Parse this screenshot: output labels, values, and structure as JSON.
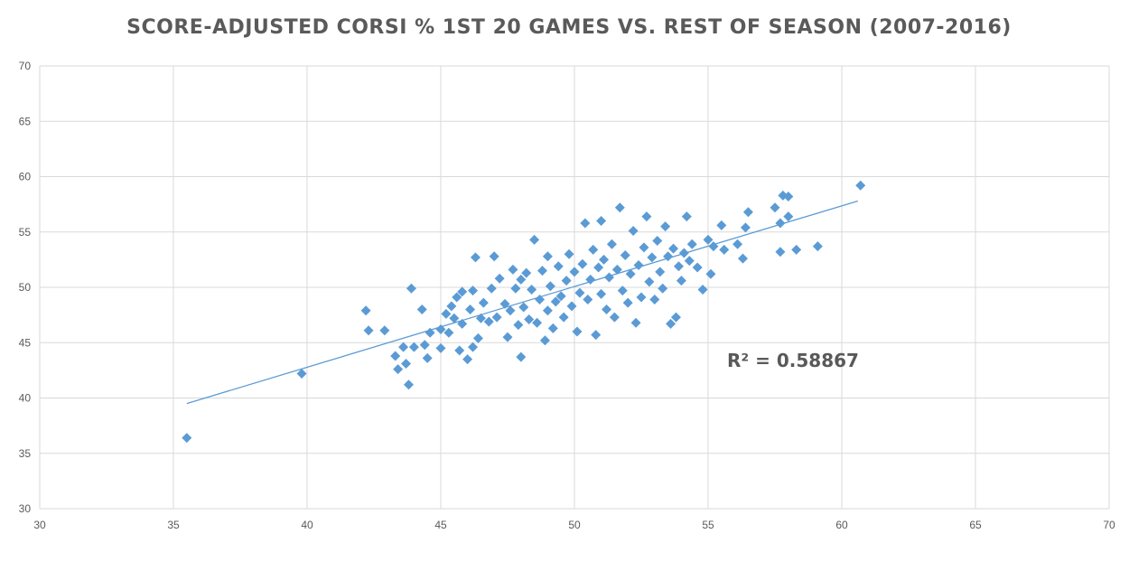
{
  "chart_data": {
    "type": "scatter",
    "title": "SCORE-ADJUSTED CORSI % 1ST 20 GAMES VS. REST OF SEASON (2007-2016)",
    "xlabel": "",
    "ylabel": "",
    "xlim": [
      30,
      70
    ],
    "ylim": [
      30,
      70
    ],
    "xticks": [
      30,
      35,
      40,
      45,
      50,
      55,
      60,
      65,
      70
    ],
    "yticks": [
      30,
      35,
      40,
      45,
      50,
      55,
      60,
      65,
      70
    ],
    "grid": true,
    "marker": "diamond",
    "colors": {
      "points": "#5b9bd5",
      "trendline": "#5b9bd5",
      "grid": "#d9d9d9"
    },
    "trendline": {
      "type": "linear",
      "x_start": 35.5,
      "y_start": 39.5,
      "x_end": 60.6,
      "y_end": 57.8
    },
    "annotation": "R² = 0.58867",
    "points": [
      [
        35.5,
        36.4
      ],
      [
        39.8,
        42.2
      ],
      [
        42.2,
        47.9
      ],
      [
        42.3,
        46.1
      ],
      [
        42.9,
        46.1
      ],
      [
        43.3,
        43.8
      ],
      [
        43.4,
        42.6
      ],
      [
        43.6,
        44.6
      ],
      [
        43.7,
        43.1
      ],
      [
        43.8,
        41.2
      ],
      [
        43.9,
        49.9
      ],
      [
        44.0,
        44.6
      ],
      [
        44.3,
        48.0
      ],
      [
        44.4,
        44.8
      ],
      [
        44.5,
        43.6
      ],
      [
        44.6,
        45.9
      ],
      [
        45.0,
        44.5
      ],
      [
        45.0,
        46.2
      ],
      [
        45.2,
        47.6
      ],
      [
        45.3,
        45.9
      ],
      [
        45.4,
        48.3
      ],
      [
        45.5,
        47.2
      ],
      [
        45.6,
        49.1
      ],
      [
        45.7,
        44.3
      ],
      [
        45.8,
        46.7
      ],
      [
        45.8,
        49.6
      ],
      [
        46.0,
        43.5
      ],
      [
        46.1,
        48.0
      ],
      [
        46.2,
        44.6
      ],
      [
        46.2,
        49.7
      ],
      [
        46.3,
        52.7
      ],
      [
        46.4,
        45.4
      ],
      [
        46.5,
        47.2
      ],
      [
        46.6,
        48.6
      ],
      [
        46.8,
        46.9
      ],
      [
        46.9,
        49.9
      ],
      [
        47.0,
        52.8
      ],
      [
        47.1,
        47.3
      ],
      [
        47.2,
        50.8
      ],
      [
        47.4,
        48.5
      ],
      [
        47.5,
        45.5
      ],
      [
        47.6,
        47.9
      ],
      [
        47.7,
        51.6
      ],
      [
        47.8,
        49.9
      ],
      [
        47.9,
        46.6
      ],
      [
        48.0,
        43.7
      ],
      [
        48.0,
        50.7
      ],
      [
        48.1,
        48.2
      ],
      [
        48.2,
        51.3
      ],
      [
        48.3,
        47.1
      ],
      [
        48.4,
        49.8
      ],
      [
        48.5,
        54.3
      ],
      [
        48.6,
        46.8
      ],
      [
        48.7,
        48.9
      ],
      [
        48.8,
        51.5
      ],
      [
        48.9,
        45.2
      ],
      [
        49.0,
        52.8
      ],
      [
        49.0,
        47.9
      ],
      [
        49.1,
        50.1
      ],
      [
        49.2,
        46.3
      ],
      [
        49.3,
        48.7
      ],
      [
        49.4,
        51.9
      ],
      [
        49.5,
        49.2
      ],
      [
        49.6,
        47.3
      ],
      [
        49.7,
        50.6
      ],
      [
        49.8,
        53.0
      ],
      [
        49.9,
        48.3
      ],
      [
        50.0,
        51.4
      ],
      [
        50.1,
        46.0
      ],
      [
        50.2,
        49.5
      ],
      [
        50.3,
        52.1
      ],
      [
        50.4,
        55.8
      ],
      [
        50.5,
        48.9
      ],
      [
        50.6,
        50.7
      ],
      [
        50.7,
        53.4
      ],
      [
        50.8,
        45.7
      ],
      [
        50.9,
        51.8
      ],
      [
        51.0,
        49.4
      ],
      [
        51.0,
        56.0
      ],
      [
        51.1,
        52.5
      ],
      [
        51.2,
        48.0
      ],
      [
        51.3,
        50.9
      ],
      [
        51.4,
        53.9
      ],
      [
        51.5,
        47.3
      ],
      [
        51.6,
        51.6
      ],
      [
        51.7,
        57.2
      ],
      [
        51.8,
        49.7
      ],
      [
        51.9,
        52.9
      ],
      [
        52.0,
        48.6
      ],
      [
        52.1,
        51.2
      ],
      [
        52.2,
        55.1
      ],
      [
        52.3,
        46.8
      ],
      [
        52.4,
        52.0
      ],
      [
        52.5,
        49.1
      ],
      [
        52.6,
        53.6
      ],
      [
        52.7,
        56.4
      ],
      [
        52.8,
        50.5
      ],
      [
        52.9,
        52.7
      ],
      [
        53.0,
        48.9
      ],
      [
        53.1,
        54.2
      ],
      [
        53.2,
        51.4
      ],
      [
        53.3,
        49.9
      ],
      [
        53.4,
        55.5
      ],
      [
        53.5,
        52.8
      ],
      [
        53.6,
        46.7
      ],
      [
        53.7,
        53.5
      ],
      [
        53.8,
        47.3
      ],
      [
        53.9,
        51.9
      ],
      [
        54.0,
        50.6
      ],
      [
        54.1,
        53.1
      ],
      [
        54.2,
        56.4
      ],
      [
        54.3,
        52.4
      ],
      [
        54.4,
        53.9
      ],
      [
        54.6,
        51.8
      ],
      [
        54.8,
        49.8
      ],
      [
        55.0,
        54.3
      ],
      [
        55.1,
        51.2
      ],
      [
        55.2,
        53.7
      ],
      [
        55.5,
        55.6
      ],
      [
        55.6,
        53.4
      ],
      [
        56.1,
        53.9
      ],
      [
        56.3,
        52.6
      ],
      [
        56.4,
        55.4
      ],
      [
        56.5,
        56.8
      ],
      [
        57.5,
        57.2
      ],
      [
        57.7,
        55.8
      ],
      [
        57.7,
        53.2
      ],
      [
        57.8,
        58.3
      ],
      [
        58.0,
        56.4
      ],
      [
        58.0,
        58.2
      ],
      [
        58.3,
        53.4
      ],
      [
        59.1,
        53.7
      ],
      [
        60.7,
        59.2
      ]
    ]
  }
}
